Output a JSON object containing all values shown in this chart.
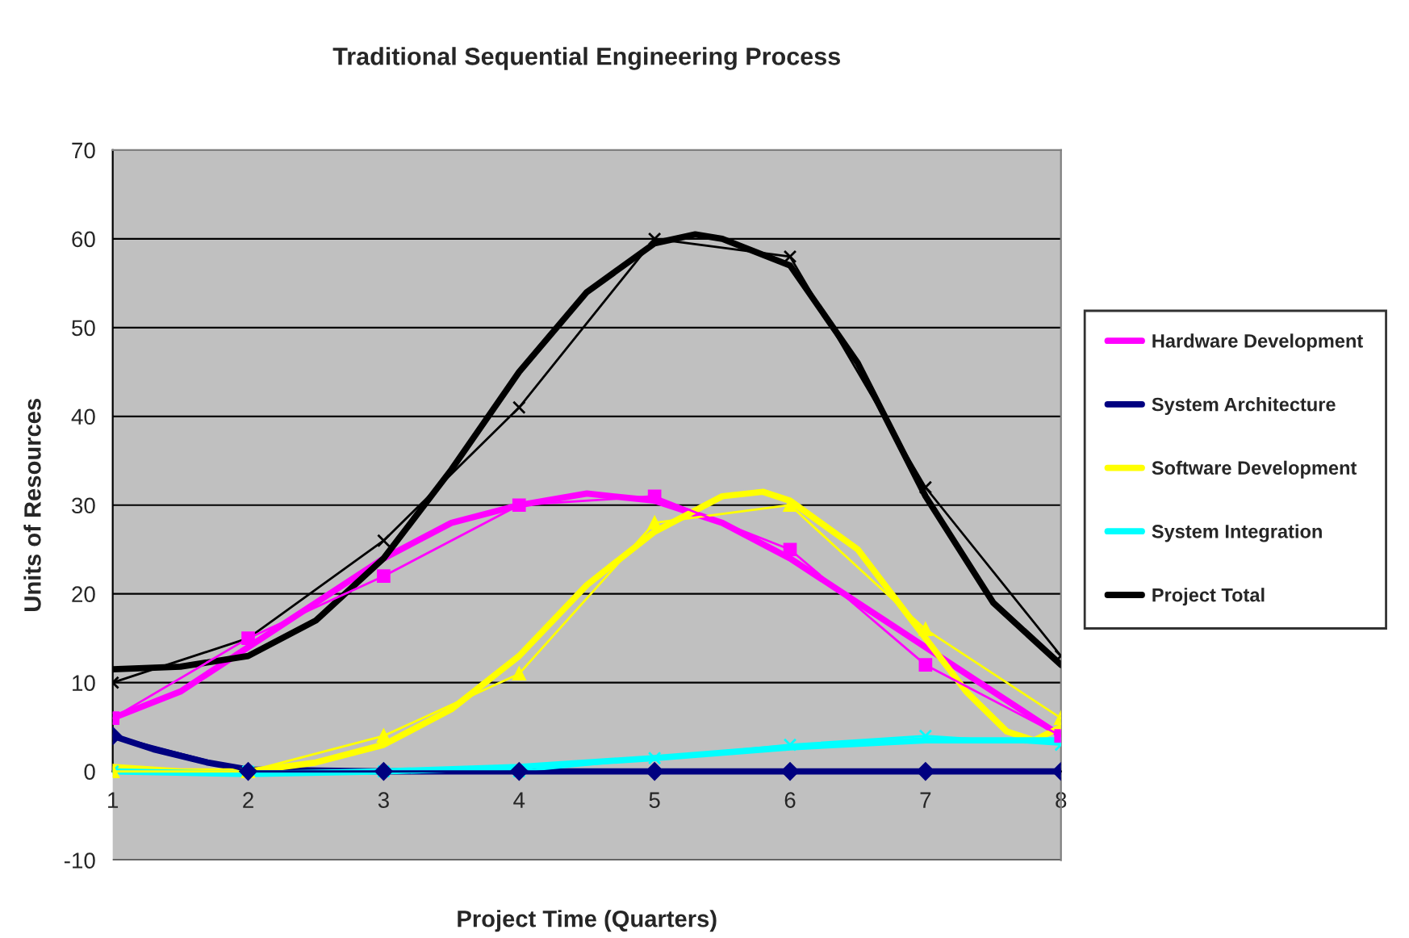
{
  "chart_data": {
    "type": "line",
    "title": "Traditional Sequential Engineering Process",
    "xlabel": "Project Time (Quarters)",
    "ylabel": "Units of Resources",
    "x": [
      1,
      2,
      3,
      4,
      5,
      6,
      7,
      8
    ],
    "series": [
      {
        "name": "Hardware Development",
        "color": "#ff00ff",
        "marker": "square",
        "values": [
          6,
          15,
          22,
          30,
          31,
          25,
          12,
          4
        ]
      },
      {
        "name": "System Architecture",
        "color": "#000080",
        "marker": "diamond",
        "values": [
          4,
          0,
          0,
          0,
          0,
          0,
          0,
          0
        ]
      },
      {
        "name": "Software Development",
        "color": "#ffff00",
        "marker": "triangle",
        "values": [
          0,
          0,
          4,
          11,
          28,
          30,
          16,
          6
        ]
      },
      {
        "name": "System Integration",
        "color": "#00ffff",
        "marker": "cross",
        "values": [
          0,
          0,
          0,
          0,
          1.5,
          3,
          4,
          3
        ]
      },
      {
        "name": "Project Total",
        "color": "#000000",
        "marker": "cross",
        "values": [
          10,
          15,
          26,
          41,
          60,
          58,
          32,
          13
        ]
      },
      {
        "color": "#ff00ff",
        "marker": "none",
        "x": [
          1,
          1.5,
          2,
          2.5,
          3,
          3.5,
          4,
          4.5,
          5,
          5.5,
          6,
          6.5,
          7,
          7.5,
          8
        ],
        "values": [
          6,
          9,
          14,
          19,
          24,
          28,
          30,
          31.3,
          30.5,
          28,
          24,
          19,
          14,
          9,
          4
        ]
      },
      {
        "color": "#000080",
        "marker": "none",
        "x": [
          1,
          1.3,
          1.7,
          2,
          3,
          4,
          5,
          6,
          7,
          8
        ],
        "values": [
          4,
          2.5,
          1,
          0.2,
          0,
          0,
          0,
          0,
          0,
          0
        ]
      },
      {
        "color": "#ffff00",
        "marker": "none",
        "x": [
          1,
          1.5,
          2,
          2.5,
          3,
          3.5,
          4,
          4.5,
          5,
          5.5,
          5.8,
          6,
          6.5,
          7,
          7.3,
          7.6,
          7.8,
          8
        ],
        "values": [
          0.5,
          0,
          0,
          1,
          3,
          7,
          13,
          21,
          27,
          31,
          31.5,
          30.5,
          25,
          15,
          9,
          4.5,
          3.5,
          5
        ]
      },
      {
        "color": "#00ffff",
        "marker": "none",
        "x": [
          1,
          2,
          3,
          4,
          5,
          6,
          7,
          8
        ],
        "values": [
          0,
          -0.3,
          0,
          0.5,
          1.5,
          2.7,
          3.5,
          3.5
        ]
      },
      {
        "color": "#000000",
        "marker": "none",
        "x": [
          1,
          1.5,
          2,
          2.5,
          3,
          3.5,
          4,
          4.5,
          5,
          5.3,
          5.5,
          6,
          6.5,
          7,
          7.5,
          8
        ],
        "values": [
          11.5,
          11.8,
          13,
          17,
          24,
          34,
          45,
          54,
          59.5,
          60.5,
          60,
          57,
          46,
          31,
          19,
          12
        ]
      }
    ],
    "xlim": [
      1,
      8
    ],
    "xticks": [
      1,
      2,
      3,
      4,
      5,
      6,
      7,
      8
    ],
    "ylim": [
      -10,
      70
    ],
    "yticks": [
      -10,
      0,
      10,
      20,
      30,
      40,
      50,
      60,
      70
    ],
    "grid": "y",
    "legend": "right",
    "line_style": "solid"
  }
}
